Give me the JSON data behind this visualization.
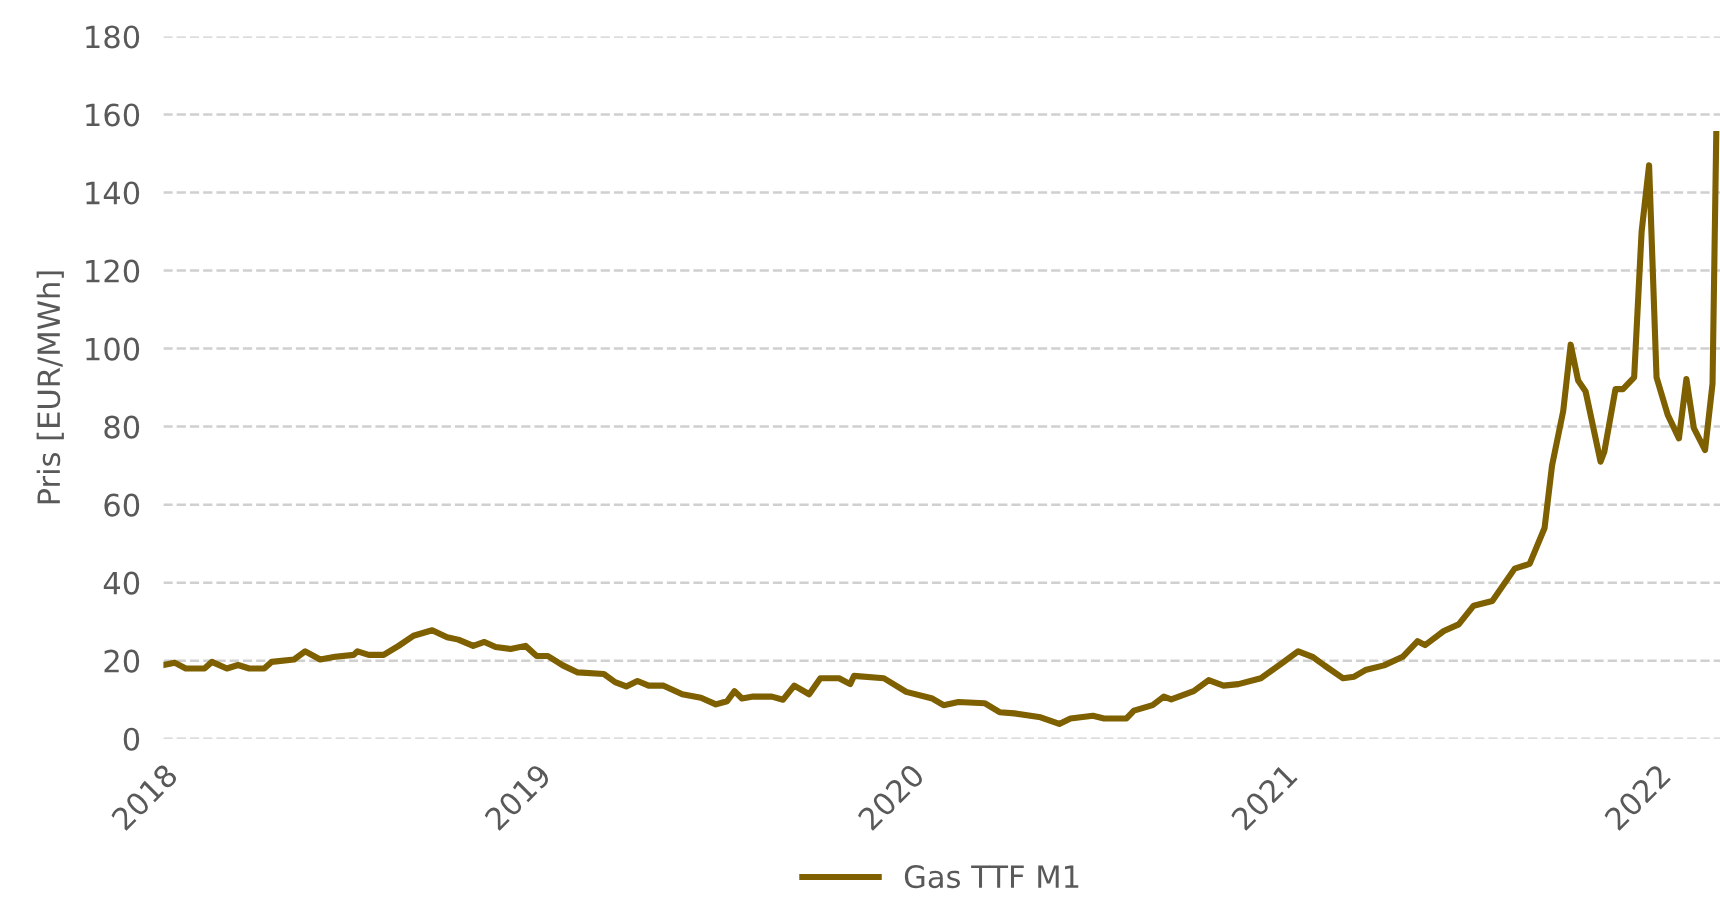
{
  "chart_data": {
    "type": "line",
    "ylabel": "Pris [EUR/MWh]",
    "ylim": [
      0,
      180
    ],
    "yticks": [
      0,
      20,
      40,
      60,
      80,
      100,
      120,
      140,
      160,
      180
    ],
    "xlim": [
      2018.0,
      2022.17
    ],
    "xticks": [
      2018,
      2019,
      2020,
      2021,
      2022
    ],
    "grid": "y",
    "legend": "bottom",
    "line_style": "solid",
    "marker": "none",
    "series": [
      {
        "name": "Gas TTF M1",
        "color": "#7f6000",
        "x": [
          2018.0,
          2018.03,
          2018.06,
          2018.11,
          2018.13,
          2018.17,
          2018.2,
          2018.23,
          2018.27,
          2018.29,
          2018.35,
          2018.38,
          2018.42,
          2018.46,
          2018.51,
          2018.52,
          2018.55,
          2018.59,
          2018.63,
          2018.67,
          2018.72,
          2018.76,
          2018.79,
          2018.83,
          2018.86,
          2018.89,
          2018.93,
          2018.97,
          2019.0,
          2019.03,
          2019.07,
          2019.11,
          2019.18,
          2019.21,
          2019.24,
          2019.27,
          2019.3,
          2019.34,
          2019.39,
          2019.44,
          2019.48,
          2019.51,
          2019.53,
          2019.55,
          2019.58,
          2019.63,
          2019.66,
          2019.69,
          2019.73,
          2019.76,
          2019.81,
          2019.84,
          2019.85,
          2019.93,
          2019.99,
          2020.06,
          2020.09,
          2020.13,
          2020.2,
          2020.24,
          2020.28,
          2020.35,
          2020.4,
          2020.43,
          2020.49,
          2020.52,
          2020.58,
          2020.6,
          2020.65,
          2020.68,
          2020.7,
          2020.76,
          2020.8,
          2020.84,
          2020.88,
          2020.94,
          2021.0,
          2021.04,
          2021.08,
          2021.11,
          2021.16,
          2021.19,
          2021.22,
          2021.27,
          2021.32,
          2021.36,
          2021.38,
          2021.43,
          2021.47,
          2021.51,
          2021.56,
          2021.62,
          2021.66,
          2021.7,
          2021.72,
          2021.75,
          2021.77,
          2021.79,
          2021.81,
          2021.85,
          2021.86,
          2021.89,
          2021.91,
          2021.94,
          2021.96,
          2021.98,
          2022.0,
          2022.03,
          2022.06,
          2022.08,
          2022.1,
          2022.13,
          2022.15,
          2022.16
        ],
        "values": [
          18.9,
          19.5,
          18,
          18,
          19.7,
          18,
          18.9,
          18,
          18,
          19.7,
          20.3,
          22.4,
          20.3,
          21,
          21.5,
          22.4,
          21.5,
          21.5,
          23.8,
          26.4,
          27.8,
          26,
          25.4,
          23.8,
          24.8,
          23.5,
          23,
          23.8,
          21.2,
          21.2,
          18.8,
          17,
          16.6,
          14.5,
          13.4,
          14.8,
          13.6,
          13.6,
          11.4,
          10.5,
          8.8,
          9.6,
          12.2,
          10.3,
          10.8,
          10.8,
          10,
          13.6,
          11.4,
          15.5,
          15.5,
          14,
          16.1,
          15.5,
          12,
          10.3,
          8.6,
          9.4,
          9.1,
          6.8,
          6.5,
          5.5,
          3.8,
          5.2,
          5.9,
          5.2,
          5.2,
          7.2,
          8.6,
          10.8,
          10.1,
          12.2,
          15,
          13.6,
          14,
          15.5,
          19.6,
          22.4,
          20.9,
          18.8,
          15.5,
          15.9,
          17.6,
          18.8,
          21,
          25,
          24,
          27.6,
          29.3,
          34.1,
          35.3,
          43.6,
          44.8,
          54,
          70,
          84,
          101,
          91.8,
          89,
          71,
          73.5,
          89.6,
          89.6,
          92.6,
          130,
          147,
          92.6,
          83,
          77,
          92.2,
          79.6,
          74,
          91,
          155
        ]
      }
    ]
  }
}
